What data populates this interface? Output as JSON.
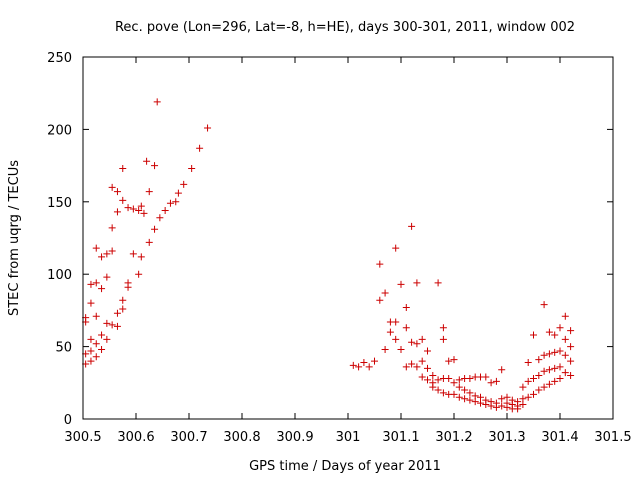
{
  "chart_data": {
    "type": "scatter",
    "title": "Rec. pove (Lon=296, Lat=-8, h=HE), days 300-301, 2011, window 002",
    "xlabel": "GPS time / Days of year 2011",
    "ylabel": "STEC from uqrg / TECUs",
    "xlim": [
      300.5,
      301.5
    ],
    "ylim": [
      0,
      250
    ],
    "xticks": [
      300.5,
      300.6,
      300.7,
      300.8,
      300.9,
      301,
      301.1,
      301.2,
      301.3,
      301.4,
      301.5
    ],
    "xtick_labels": [
      "300.5",
      "300.6",
      "300.7",
      "300.8",
      "300.9",
      "301",
      "301.1",
      "301.2",
      "301.3",
      "301.4",
      "301.5"
    ],
    "yticks": [
      0,
      50,
      100,
      150,
      200,
      250
    ],
    "ytick_labels": [
      "0",
      "50",
      "100",
      "150",
      "200",
      "250"
    ],
    "marker": "+",
    "marker_color": "#cc0000",
    "grid": false,
    "series": [
      {
        "name": "STEC",
        "points": [
          [
            300.505,
            70
          ],
          [
            300.505,
            67
          ],
          [
            300.505,
            45
          ],
          [
            300.505,
            38
          ],
          [
            300.515,
            93
          ],
          [
            300.515,
            80
          ],
          [
            300.515,
            55
          ],
          [
            300.515,
            47
          ],
          [
            300.515,
            40
          ],
          [
            300.525,
            118
          ],
          [
            300.525,
            94
          ],
          [
            300.525,
            71
          ],
          [
            300.525,
            52
          ],
          [
            300.525,
            43
          ],
          [
            300.535,
            112
          ],
          [
            300.535,
            90
          ],
          [
            300.535,
            58
          ],
          [
            300.535,
            48
          ],
          [
            300.545,
            114
          ],
          [
            300.545,
            98
          ],
          [
            300.545,
            66
          ],
          [
            300.545,
            55
          ],
          [
            300.555,
            160
          ],
          [
            300.555,
            132
          ],
          [
            300.555,
            116
          ],
          [
            300.555,
            65
          ],
          [
            300.565,
            157
          ],
          [
            300.565,
            143
          ],
          [
            300.565,
            73
          ],
          [
            300.565,
            64
          ],
          [
            300.575,
            173
          ],
          [
            300.575,
            151
          ],
          [
            300.575,
            82
          ],
          [
            300.575,
            76
          ],
          [
            300.585,
            146
          ],
          [
            300.585,
            94
          ],
          [
            300.585,
            91
          ],
          [
            300.595,
            145
          ],
          [
            300.595,
            114
          ],
          [
            300.605,
            144
          ],
          [
            300.605,
            100
          ],
          [
            300.61,
            147
          ],
          [
            300.61,
            112
          ],
          [
            300.615,
            142
          ],
          [
            300.62,
            178
          ],
          [
            300.625,
            157
          ],
          [
            300.625,
            122
          ],
          [
            300.635,
            175
          ],
          [
            300.635,
            131
          ],
          [
            300.64,
            219
          ],
          [
            300.645,
            139
          ],
          [
            300.655,
            144
          ],
          [
            300.665,
            149
          ],
          [
            300.675,
            150
          ],
          [
            300.68,
            156
          ],
          [
            300.69,
            162
          ],
          [
            300.705,
            173
          ],
          [
            300.72,
            187
          ],
          [
            300.735,
            201
          ],
          [
            301.01,
            37
          ],
          [
            301.02,
            36
          ],
          [
            301.03,
            39
          ],
          [
            301.04,
            36
          ],
          [
            301.05,
            40
          ],
          [
            301.06,
            107
          ],
          [
            301.06,
            82
          ],
          [
            301.07,
            87
          ],
          [
            301.07,
            48
          ],
          [
            301.08,
            67
          ],
          [
            301.08,
            60
          ],
          [
            301.09,
            118
          ],
          [
            301.09,
            67
          ],
          [
            301.09,
            55
          ],
          [
            301.1,
            93
          ],
          [
            301.1,
            48
          ],
          [
            301.11,
            77
          ],
          [
            301.11,
            63
          ],
          [
            301.11,
            36
          ],
          [
            301.12,
            133
          ],
          [
            301.12,
            53
          ],
          [
            301.12,
            38
          ],
          [
            301.13,
            94
          ],
          [
            301.13,
            52
          ],
          [
            301.13,
            36
          ],
          [
            301.14,
            55
          ],
          [
            301.14,
            40
          ],
          [
            301.14,
            29
          ],
          [
            301.15,
            47
          ],
          [
            301.15,
            35
          ],
          [
            301.15,
            27
          ],
          [
            301.16,
            30
          ],
          [
            301.16,
            25
          ],
          [
            301.16,
            22
          ],
          [
            301.17,
            94
          ],
          [
            301.17,
            27
          ],
          [
            301.17,
            20
          ],
          [
            301.18,
            63
          ],
          [
            301.18,
            55
          ],
          [
            301.18,
            28
          ],
          [
            301.18,
            18
          ],
          [
            301.19,
            40
          ],
          [
            301.19,
            28
          ],
          [
            301.19,
            17
          ],
          [
            301.2,
            41
          ],
          [
            301.2,
            25
          ],
          [
            301.2,
            17
          ],
          [
            301.21,
            27
          ],
          [
            301.21,
            22
          ],
          [
            301.21,
            15
          ],
          [
            301.22,
            28
          ],
          [
            301.22,
            20
          ],
          [
            301.22,
            14
          ],
          [
            301.23,
            28
          ],
          [
            301.23,
            18
          ],
          [
            301.23,
            13
          ],
          [
            301.24,
            29
          ],
          [
            301.24,
            16
          ],
          [
            301.24,
            12
          ],
          [
            301.25,
            29
          ],
          [
            301.25,
            15
          ],
          [
            301.25,
            11
          ],
          [
            301.26,
            29
          ],
          [
            301.26,
            13
          ],
          [
            301.26,
            10
          ],
          [
            301.27,
            25
          ],
          [
            301.27,
            12
          ],
          [
            301.27,
            9
          ],
          [
            301.28,
            26
          ],
          [
            301.28,
            11
          ],
          [
            301.28,
            8
          ],
          [
            301.29,
            34
          ],
          [
            301.29,
            14
          ],
          [
            301.29,
            9
          ],
          [
            301.3,
            15
          ],
          [
            301.3,
            11
          ],
          [
            301.3,
            8
          ],
          [
            301.31,
            13
          ],
          [
            301.31,
            10
          ],
          [
            301.31,
            7
          ],
          [
            301.32,
            12
          ],
          [
            301.32,
            9
          ],
          [
            301.32,
            7
          ],
          [
            301.33,
            22
          ],
          [
            301.33,
            14
          ],
          [
            301.33,
            10
          ],
          [
            301.34,
            39
          ],
          [
            301.34,
            26
          ],
          [
            301.34,
            15
          ],
          [
            301.35,
            58
          ],
          [
            301.35,
            28
          ],
          [
            301.35,
            17
          ],
          [
            301.36,
            41
          ],
          [
            301.36,
            30
          ],
          [
            301.36,
            20
          ],
          [
            301.37,
            79
          ],
          [
            301.37,
            44
          ],
          [
            301.37,
            33
          ],
          [
            301.37,
            22
          ],
          [
            301.38,
            60
          ],
          [
            301.38,
            45
          ],
          [
            301.38,
            34
          ],
          [
            301.38,
            24
          ],
          [
            301.39,
            58
          ],
          [
            301.39,
            46
          ],
          [
            301.39,
            35
          ],
          [
            301.39,
            26
          ],
          [
            301.4,
            63
          ],
          [
            301.4,
            47
          ],
          [
            301.4,
            36
          ],
          [
            301.4,
            28
          ],
          [
            301.41,
            71
          ],
          [
            301.41,
            55
          ],
          [
            301.41,
            44
          ],
          [
            301.41,
            32
          ],
          [
            301.42,
            61
          ],
          [
            301.42,
            50
          ],
          [
            301.42,
            40
          ],
          [
            301.42,
            30
          ]
        ]
      }
    ]
  }
}
